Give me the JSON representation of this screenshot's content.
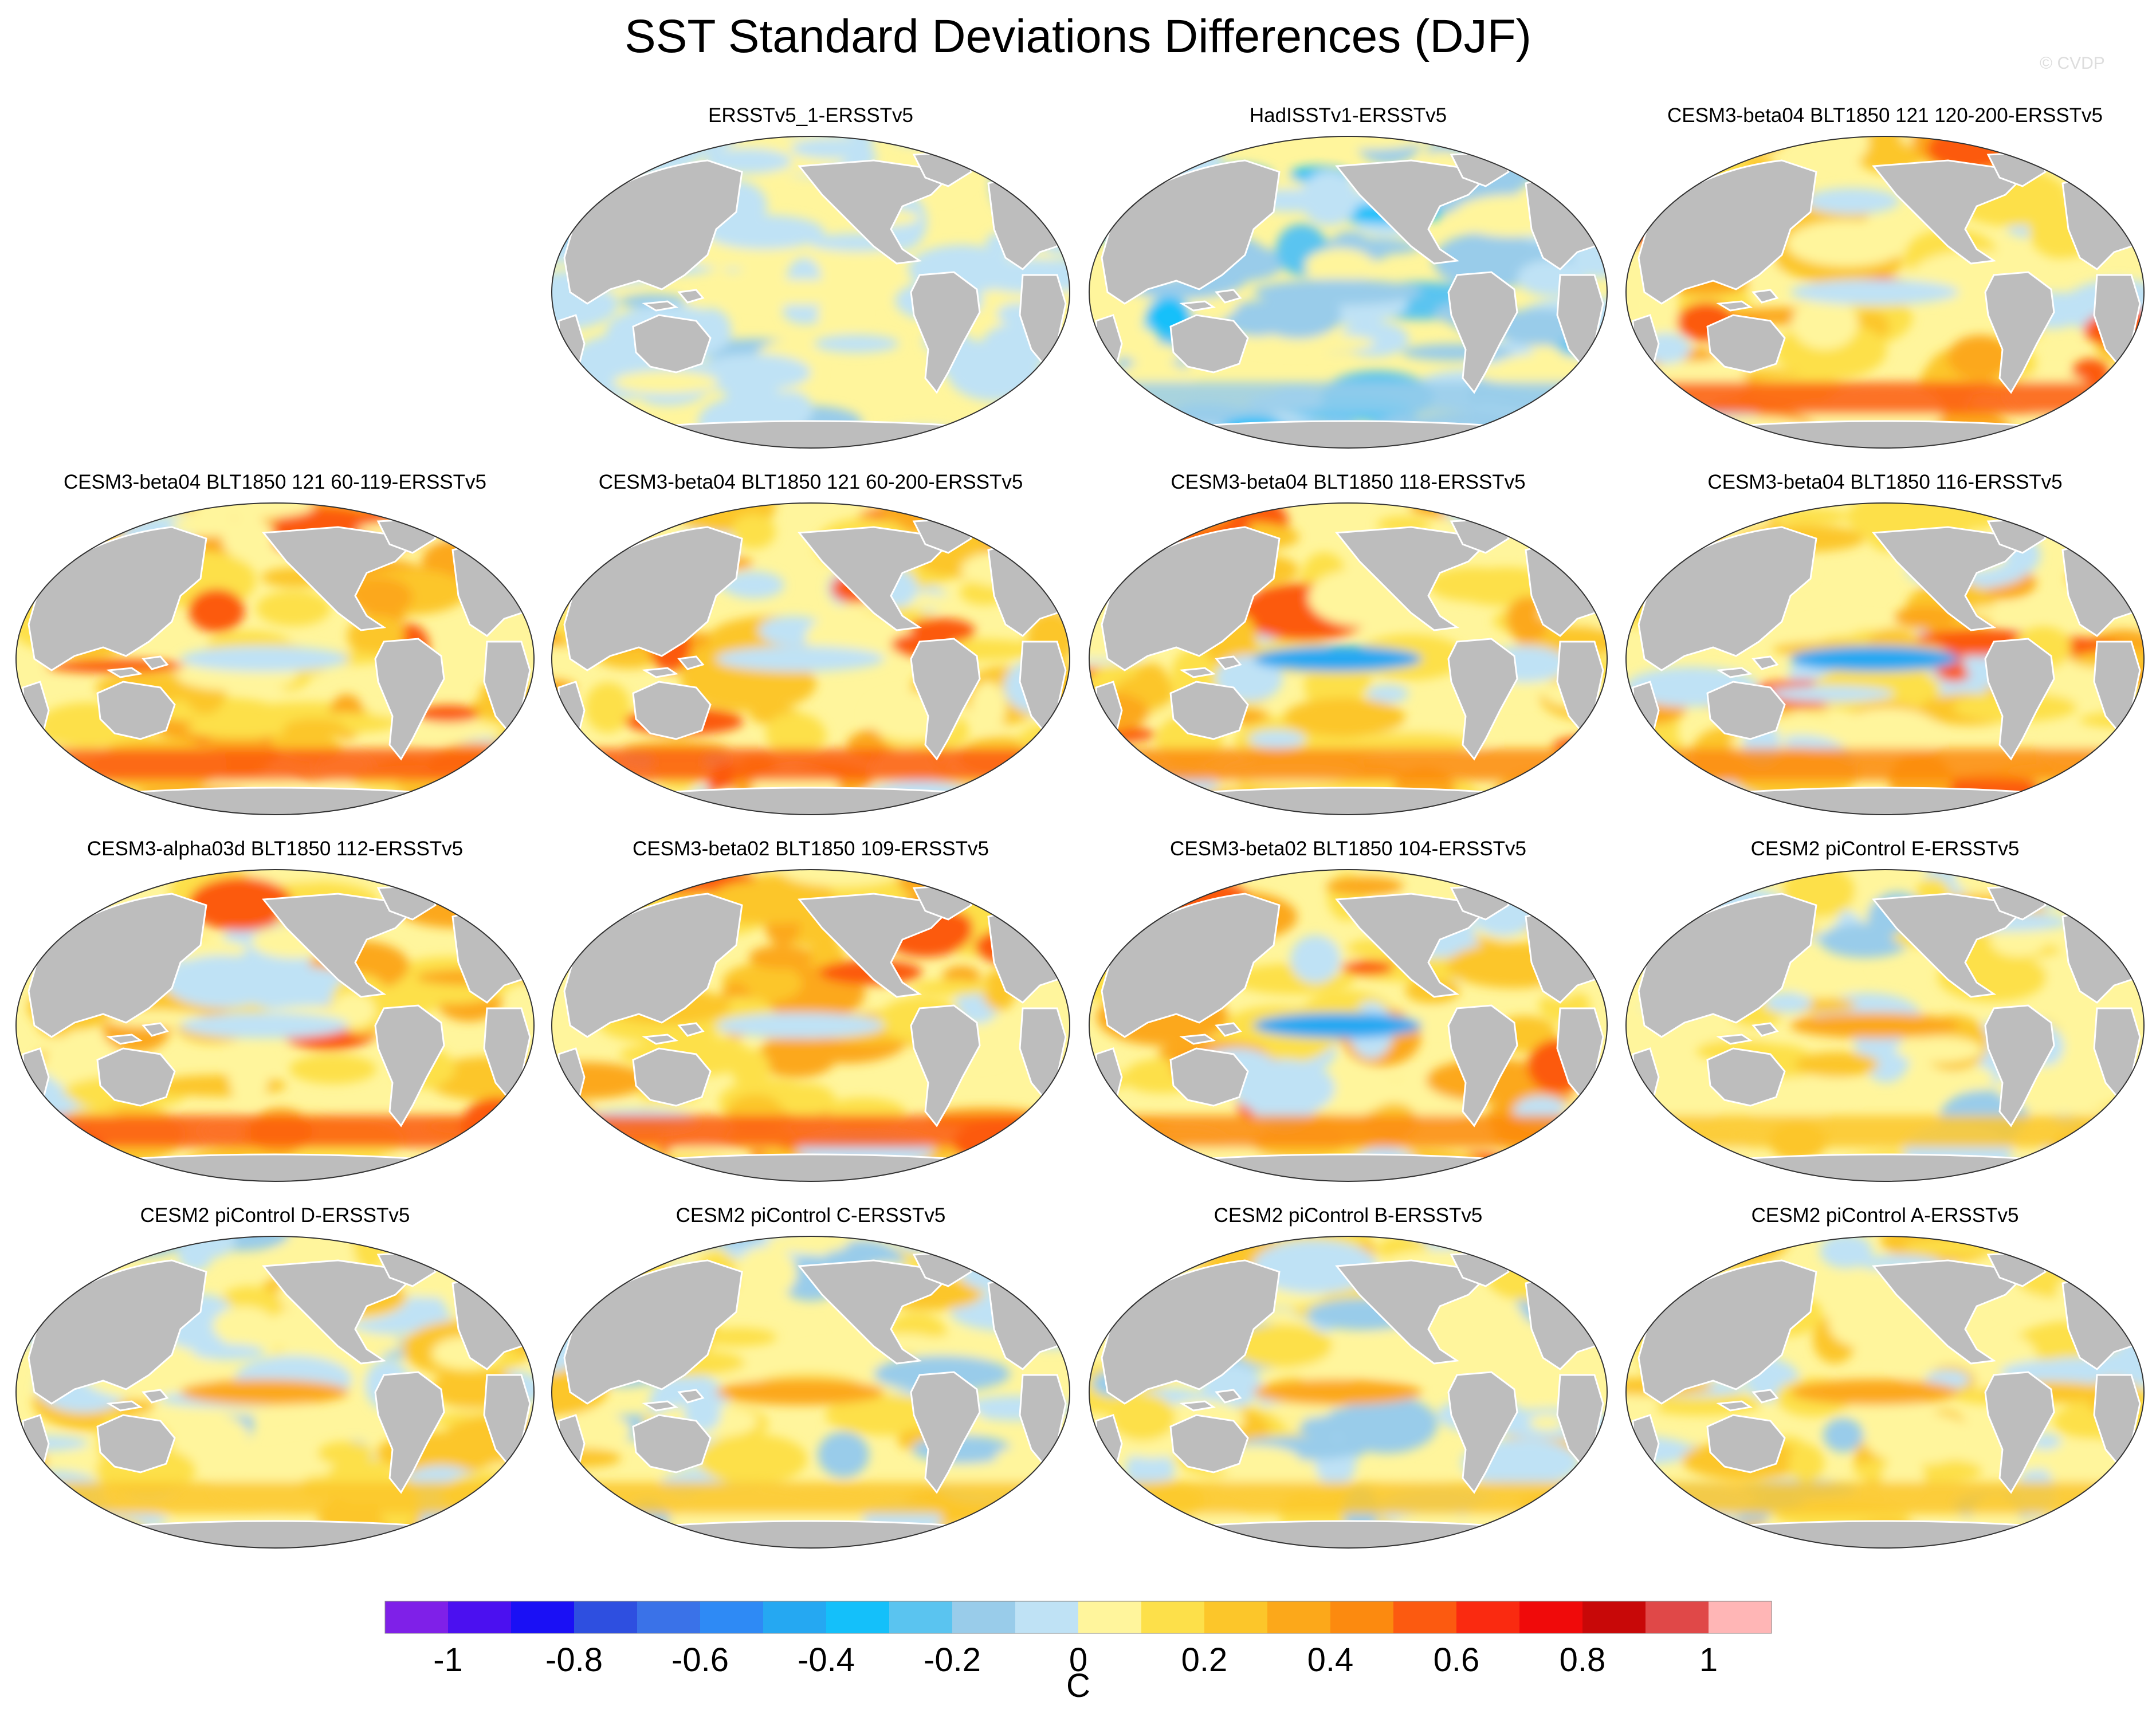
{
  "title": "SST Standard Deviations Differences (DJF)",
  "watermark": "© CVDP",
  "chart_data": {
    "type": "heatmap",
    "projection": "Robinson world map",
    "variable": "SST standard deviation difference",
    "season": "DJF",
    "units": "C",
    "colorbar": {
      "levels": [
        -1,
        -0.9,
        -0.8,
        -0.7,
        -0.6,
        -0.5,
        -0.4,
        -0.3,
        -0.2,
        -0.1,
        0,
        0.1,
        0.2,
        0.3,
        0.4,
        0.5,
        0.6,
        0.7,
        0.8,
        0.9,
        1
      ],
      "tick_labels": [
        "-1",
        "-0.8",
        "-0.6",
        "-0.4",
        "-0.2",
        "0",
        "0.2",
        "0.4",
        "0.6",
        "0.8",
        "1"
      ],
      "colors": [
        "#7f20e8",
        "#4b10f0",
        "#1a10f5",
        "#2e4fe0",
        "#3a72e8",
        "#2e8af5",
        "#25a8f2",
        "#14c0fa",
        "#5ac4f0",
        "#99ccea",
        "#bfe2f5",
        "#fff59c",
        "#fde04a",
        "#fcc62a",
        "#fca81a",
        "#fc8a0f",
        "#fc5a10",
        "#fa2a10",
        "#f00a0a",
        "#c80808",
        "#e04848",
        "#ffb6b6"
      ]
    },
    "panels": [
      {
        "title": "ERSSTv5_1-ERSSTv5",
        "pattern": "near-zero"
      },
      {
        "title": "HadISSTv1-ERSSTv5",
        "pattern": "negative"
      },
      {
        "title": "CESM3-beta04 BLT1850 121 120-200-ERSSTv5",
        "pattern": "strong-positive"
      },
      {
        "title": "CESM3-beta04 BLT1850 121 60-119-ERSSTv5",
        "pattern": "strong-positive"
      },
      {
        "title": "CESM3-beta04 BLT1850 121 60-200-ERSSTv5",
        "pattern": "strong-positive"
      },
      {
        "title": "CESM3-beta04 BLT1850 118-ERSSTv5",
        "pattern": "positive-cold-tongue"
      },
      {
        "title": "CESM3-beta04 BLT1850 116-ERSSTv5",
        "pattern": "positive-cold-tongue"
      },
      {
        "title": "CESM3-alpha03d BLT1850 112-ERSSTv5",
        "pattern": "strong-positive"
      },
      {
        "title": "CESM3-beta02 BLT1850 109-ERSSTv5",
        "pattern": "strong-positive"
      },
      {
        "title": "CESM3-beta02 BLT1850 104-ERSSTv5",
        "pattern": "positive-cold-tongue"
      },
      {
        "title": "CESM2 piControl E-ERSSTv5",
        "pattern": "mixed"
      },
      {
        "title": "CESM2 piControl D-ERSSTv5",
        "pattern": "mixed"
      },
      {
        "title": "CESM2 piControl C-ERSSTv5",
        "pattern": "mixed"
      },
      {
        "title": "CESM2 piControl B-ERSSTv5",
        "pattern": "mixed"
      },
      {
        "title": "CESM2 piControl A-ERSSTv5",
        "pattern": "mixed"
      }
    ]
  }
}
